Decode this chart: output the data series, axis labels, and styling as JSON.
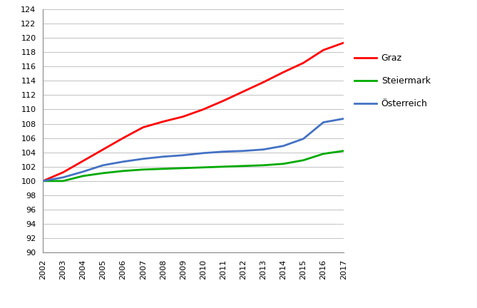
{
  "years": [
    2002,
    2003,
    2004,
    2005,
    2006,
    2007,
    2008,
    2009,
    2010,
    2011,
    2012,
    2013,
    2014,
    2015,
    2016,
    2017
  ],
  "graz": [
    100.0,
    101.2,
    102.8,
    104.4,
    106.0,
    107.5,
    108.3,
    109.0,
    110.0,
    111.2,
    112.5,
    113.8,
    115.2,
    116.5,
    118.3,
    119.3
  ],
  "steiermark": [
    100.0,
    100.0,
    100.7,
    101.1,
    101.4,
    101.6,
    101.7,
    101.8,
    101.9,
    102.0,
    102.1,
    102.2,
    102.4,
    102.9,
    103.8,
    104.2
  ],
  "oesterreich": [
    100.0,
    100.5,
    101.3,
    102.2,
    102.7,
    103.1,
    103.4,
    103.6,
    103.9,
    104.1,
    104.2,
    104.4,
    104.9,
    105.9,
    108.2,
    108.7
  ],
  "graz_color": "#ff0000",
  "steiermark_color": "#00aa00",
  "oesterreich_color": "#4472c4",
  "line_width": 2.0,
  "ylim": [
    90,
    124
  ],
  "ytick_step": 2,
  "legend_labels": [
    "Graz",
    "Steiermark",
    "Österreich"
  ],
  "background_color": "#ffffff",
  "grid_color": "#aaaaaa"
}
